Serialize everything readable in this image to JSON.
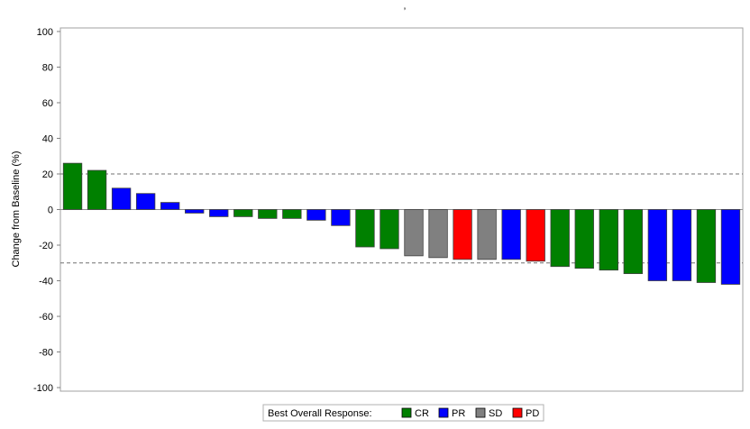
{
  "chart_data": {
    "type": "bar",
    "title": "’",
    "xlabel": "",
    "ylabel": "Change from Baseline (%)",
    "ylim": [
      -102,
      102
    ],
    "yticks": [
      100,
      80,
      60,
      40,
      20,
      0,
      -20,
      -40,
      -60,
      -80,
      -100
    ],
    "grid": false,
    "reference_lines": [
      20,
      0,
      -30
    ],
    "reference_line_styles": [
      "dashed",
      "solid",
      "dashed"
    ],
    "legend_position": "bottom-center",
    "legend_title": "Best Overall Response:",
    "legend": [
      {
        "key": "CR",
        "label": "CR",
        "color": "#008000"
      },
      {
        "key": "PR",
        "label": "PR",
        "color": "#0000ff"
      },
      {
        "key": "SD",
        "label": "SD",
        "color": "#808080"
      },
      {
        "key": "PD",
        "label": "PD",
        "color": "#ff0000"
      }
    ],
    "values": [
      26,
      22,
      12,
      9,
      4,
      -2,
      -4,
      -4,
      -5,
      -5,
      -6,
      -9,
      -21,
      -22,
      -26,
      -27,
      -28,
      -28,
      -28,
      -29,
      -32,
      -33,
      -34,
      -36,
      -40,
      -40,
      -41,
      -42
    ],
    "responses": [
      "CR",
      "CR",
      "PR",
      "PR",
      "PR",
      "PR",
      "PR",
      "CR",
      "CR",
      "CR",
      "PR",
      "PR",
      "CR",
      "CR",
      "SD",
      "SD",
      "PD",
      "SD",
      "PR",
      "PD",
      "CR",
      "CR",
      "CR",
      "CR",
      "PR",
      "PR",
      "CR",
      "PR"
    ]
  }
}
